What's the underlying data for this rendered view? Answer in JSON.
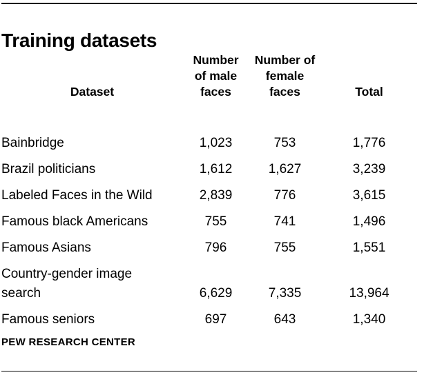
{
  "title": "Training datasets",
  "footer": {
    "label": "PEW RESEARCH CENTER"
  },
  "colors": {
    "background": "#ffffff",
    "text": "#000000",
    "rule": "#000000"
  },
  "chart_data": {
    "type": "table",
    "title": "Training datasets",
    "columns": [
      "Dataset",
      "Number of male faces",
      "Number of female faces",
      "Total"
    ],
    "column_headers_display": [
      "Dataset",
      "Number\nof male\nfaces",
      "Number of\nfemale\nfaces",
      "Total"
    ],
    "rows": [
      {
        "dataset": "Bainbridge",
        "male_faces": "1,023",
        "female_faces": "753",
        "total": "1,776"
      },
      {
        "dataset": "Brazil politicians",
        "male_faces": "1,612",
        "female_faces": "1,627",
        "total": "3,239"
      },
      {
        "dataset": "Labeled Faces in the Wild",
        "male_faces": "2,839",
        "female_faces": "776",
        "total": "3,615"
      },
      {
        "dataset": "Famous black Americans",
        "male_faces": "755",
        "female_faces": "741",
        "total": "1,496"
      },
      {
        "dataset": "Famous Asians",
        "male_faces": "796",
        "female_faces": "755",
        "total": "1,551"
      },
      {
        "dataset": "Country-gender image\nsearch",
        "male_faces": "6,629",
        "female_faces": "7,335",
        "total": "13,964"
      },
      {
        "dataset": "Famous seniors",
        "male_faces": "697",
        "female_faces": "643",
        "total": "1,340"
      }
    ]
  }
}
